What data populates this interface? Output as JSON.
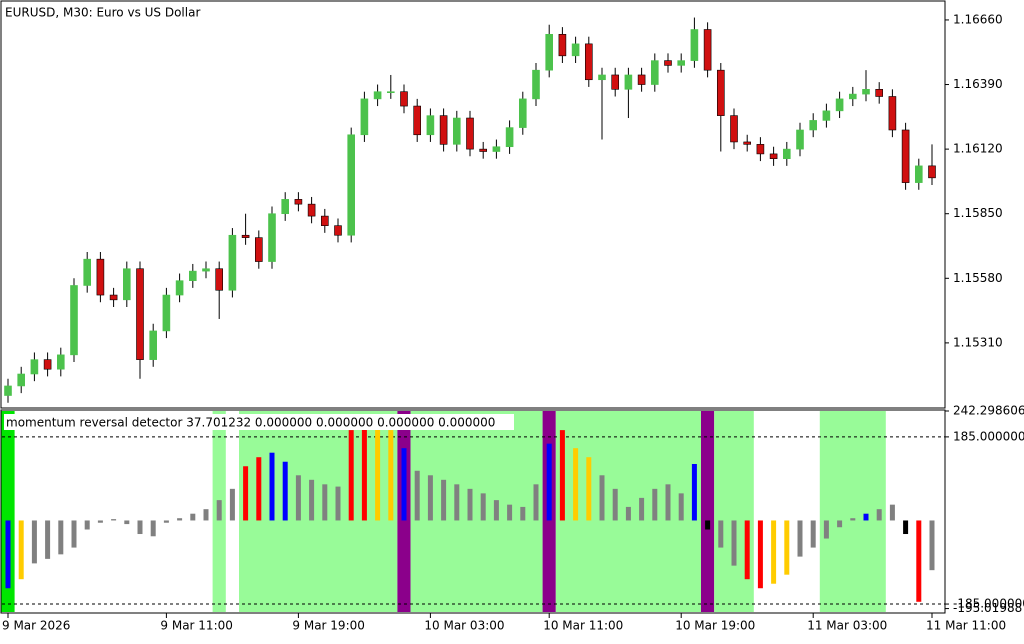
{
  "chart_data": [
    {
      "type": "candlestick",
      "title": "EURUSD, M30:  Euro vs US Dollar",
      "up_color": "#4cc24c",
      "down_color": "#d01010",
      "open": [
        1.1509,
        1.1513,
        1.1518,
        1.1524,
        1.152,
        1.1526,
        1.1555,
        1.1566,
        1.1551,
        1.1549,
        1.1562,
        1.1524,
        1.1536,
        1.1551,
        1.1557,
        1.1561,
        1.1562,
        1.1553,
        1.1576,
        1.1575,
        1.1565,
        1.1585,
        1.1591,
        1.1589,
        1.1584,
        1.158,
        1.1576,
        1.1618,
        1.1633,
        1.1636,
        1.1636,
        1.163,
        1.1618,
        1.1626,
        1.1614,
        1.1625,
        1.1612,
        1.1611,
        1.1613,
        1.1621,
        1.1633,
        1.1645,
        1.166,
        1.1651,
        1.1656,
        1.1641,
        1.1643,
        1.1637,
        1.1643,
        1.1639,
        1.1649,
        1.1647,
        1.1649,
        1.1662,
        1.1645,
        1.1626,
        1.1615,
        1.1614,
        1.161,
        1.1608,
        1.1612,
        1.162,
        1.1624,
        1.1628,
        1.1633,
        1.1635,
        1.1637,
        1.1634,
        1.162,
        1.1598,
        1.1605
      ],
      "high": [
        1.1516,
        1.1521,
        1.1527,
        1.1527,
        1.1529,
        1.1558,
        1.1569,
        1.1569,
        1.1554,
        1.1565,
        1.1565,
        1.1539,
        1.1554,
        1.156,
        1.1564,
        1.1565,
        1.1565,
        1.1579,
        1.1585,
        1.1578,
        1.1588,
        1.1594,
        1.1594,
        1.1592,
        1.1587,
        1.1583,
        1.1621,
        1.1636,
        1.1639,
        1.1643,
        1.1639,
        1.1633,
        1.1629,
        1.1629,
        1.1628,
        1.1628,
        1.1615,
        1.1616,
        1.1624,
        1.1636,
        1.1648,
        1.1664,
        1.1663,
        1.1659,
        1.1659,
        1.1646,
        1.1646,
        1.1646,
        1.1646,
        1.1652,
        1.1652,
        1.1652,
        1.1667,
        1.1665,
        1.1648,
        1.1629,
        1.1618,
        1.1617,
        1.1613,
        1.1615,
        1.1623,
        1.1627,
        1.1631,
        1.1636,
        1.1638,
        1.1645,
        1.164,
        1.1637,
        1.1623,
        1.1608,
        1.1614
      ],
      "low": [
        1.1506,
        1.151,
        1.1515,
        1.1517,
        1.1517,
        1.1523,
        1.1552,
        1.1548,
        1.1546,
        1.1546,
        1.1516,
        1.1521,
        1.1533,
        1.1548,
        1.1554,
        1.1558,
        1.1541,
        1.155,
        1.1572,
        1.1562,
        1.1562,
        1.1582,
        1.1586,
        1.1581,
        1.1577,
        1.1573,
        1.1573,
        1.1615,
        1.163,
        1.1633,
        1.1627,
        1.1615,
        1.1615,
        1.1611,
        1.1611,
        1.1609,
        1.1608,
        1.1608,
        1.161,
        1.1618,
        1.163,
        1.1642,
        1.1648,
        1.1648,
        1.1638,
        1.1616,
        1.1634,
        1.1625,
        1.1636,
        1.1636,
        1.1644,
        1.1644,
        1.1646,
        1.1642,
        1.1611,
        1.1612,
        1.1611,
        1.1607,
        1.1605,
        1.1605,
        1.1609,
        1.1617,
        1.1621,
        1.1625,
        1.163,
        1.1632,
        1.1631,
        1.1617,
        1.1595,
        1.1595,
        1.1597
      ],
      "close": [
        1.1513,
        1.1518,
        1.1524,
        1.152,
        1.1526,
        1.1555,
        1.1566,
        1.1551,
        1.1549,
        1.1562,
        1.1524,
        1.1536,
        1.1551,
        1.1557,
        1.1561,
        1.1562,
        1.1553,
        1.1576,
        1.1575,
        1.1565,
        1.1585,
        1.1591,
        1.1589,
        1.1584,
        1.158,
        1.1576,
        1.1618,
        1.1633,
        1.1636,
        1.1636,
        1.163,
        1.1618,
        1.1626,
        1.1614,
        1.1625,
        1.1612,
        1.1611,
        1.1613,
        1.1621,
        1.1633,
        1.1645,
        1.166,
        1.1651,
        1.1656,
        1.1641,
        1.1643,
        1.1637,
        1.1643,
        1.1639,
        1.1649,
        1.1647,
        1.1649,
        1.1662,
        1.1645,
        1.1626,
        1.1615,
        1.1614,
        1.161,
        1.1608,
        1.1612,
        1.162,
        1.1624,
        1.1628,
        1.1633,
        1.1635,
        1.1637,
        1.1634,
        1.162,
        1.1598,
        1.1605,
        1.16
      ],
      "ylim": [
        1.15042,
        1.16735
      ],
      "yticks": [
        {
          "value": 1.1531,
          "label": "1.15310"
        },
        {
          "value": 1.1558,
          "label": "1.15580"
        },
        {
          "value": 1.1585,
          "label": "1.15850"
        },
        {
          "value": 1.1612,
          "label": "1.16120"
        },
        {
          "value": 1.1639,
          "label": "1.16390"
        },
        {
          "value": 1.1666,
          "label": "1.16660"
        }
      ],
      "x_labels": [
        {
          "index": 0,
          "label": "9 Mar 2026"
        },
        {
          "index": 12,
          "label": "9 Mar 11:00"
        },
        {
          "index": 22,
          "label": "9 Mar 19:00"
        },
        {
          "index": 32,
          "label": "10 Mar 03:00"
        },
        {
          "index": 41,
          "label": "10 Mar 11:00"
        },
        {
          "index": 51,
          "label": "10 Mar 19:00"
        },
        {
          "index": 61,
          "label": "11 Mar 03:00"
        },
        {
          "index": 70,
          "label": "11 Mar 11:00"
        }
      ]
    },
    {
      "type": "histogram",
      "title": "momentum reversal detector 37.701232 0.000000 0.000000 0.000000 0.000000",
      "values": [
        -150,
        -130,
        -95,
        -85,
        -75,
        -60,
        -20,
        -5,
        3,
        -8,
        -30,
        -35,
        -5,
        5,
        15,
        25,
        45,
        70,
        120,
        140,
        150,
        130,
        100,
        90,
        80,
        75,
        200,
        210,
        205,
        200,
        160,
        110,
        100,
        90,
        80,
        70,
        60,
        45,
        35,
        30,
        80,
        170,
        200,
        160,
        140,
        100,
        70,
        30,
        50,
        70,
        80,
        60,
        125,
        -20,
        -60,
        -100,
        -130,
        -150,
        -140,
        -120,
        -80,
        -60,
        -40,
        -15,
        5,
        15,
        25,
        35,
        -30,
        -180,
        -110
      ],
      "colors": [
        "#0000ff",
        "#ffcc00",
        "#808080",
        "#808080",
        "#808080",
        "#808080",
        "#808080",
        "#808080",
        "#808080",
        "#808080",
        "#808080",
        "#808080",
        "#808080",
        "#808080",
        "#808080",
        "#808080",
        "#808080",
        "#808080",
        "#ff0000",
        "#ff0000",
        "#0000ff",
        "#0000ff",
        "#808080",
        "#808080",
        "#808080",
        "#808080",
        "#ff0000",
        "#ff0000",
        "#ffcc00",
        "#ffcc00",
        "#0000ff",
        "#808080",
        "#808080",
        "#808080",
        "#808080",
        "#808080",
        "#808080",
        "#808080",
        "#808080",
        "#808080",
        "#808080",
        "#0000ff",
        "#ff0000",
        "#ffcc00",
        "#ffcc00",
        "#808080",
        "#808080",
        "#808080",
        "#808080",
        "#808080",
        "#808080",
        "#808080",
        "#0000ff",
        "#000000",
        "#808080",
        "#808080",
        "#ff0000",
        "#ff0000",
        "#ffcc00",
        "#ffcc00",
        "#808080",
        "#808080",
        "#808080",
        "#808080",
        "#808080",
        "#0000ff",
        "#808080",
        "#808080",
        "#000000",
        "#ff0000",
        "#808080"
      ],
      "zones": [
        {
          "start": 0,
          "end": 0,
          "color": "#00e600"
        },
        {
          "start": 16,
          "end": 16,
          "color": "#98fb98"
        },
        {
          "start": 18,
          "end": 29,
          "color": "#98fb98"
        },
        {
          "start": 30,
          "end": 30,
          "color": "#8b008b"
        },
        {
          "start": 31,
          "end": 40,
          "color": "#98fb98"
        },
        {
          "start": 41,
          "end": 41,
          "color": "#8b008b"
        },
        {
          "start": 42,
          "end": 52,
          "color": "#98fb98"
        },
        {
          "start": 53,
          "end": 53,
          "color": "#8b008b"
        },
        {
          "start": 54,
          "end": 56,
          "color": "#98fb98"
        },
        {
          "start": 62,
          "end": 66,
          "color": "#98fb98"
        }
      ],
      "levels": [
        185,
        -185
      ],
      "ylim": [
        -202.6,
        242.298606
      ],
      "yticks": [
        {
          "value": 242.298606,
          "label": "242.298606"
        },
        {
          "value": 185,
          "label": "185.000000"
        },
        {
          "value": -185,
          "label": "-185.000000"
        },
        {
          "value": -195.01988,
          "label": "-195.01988"
        }
      ]
    }
  ]
}
